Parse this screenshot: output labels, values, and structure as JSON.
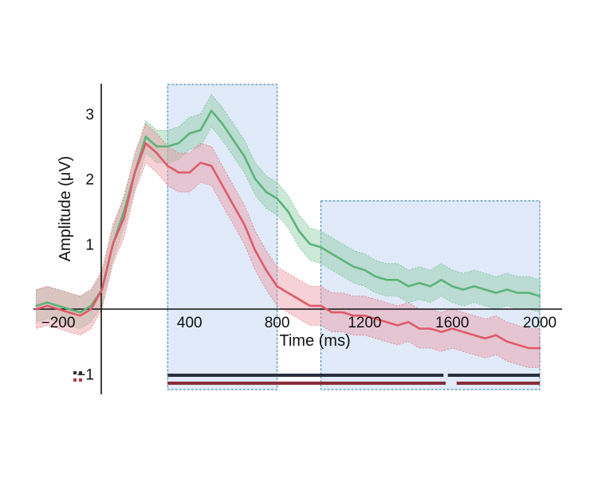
{
  "chart_data": {
    "type": "line",
    "title": "",
    "xlabel": "Time (ms)",
    "ylabel": "Amplitude (μV)",
    "xlim": [
      -300,
      2000
    ],
    "ylim": [
      -1.3,
      3.5
    ],
    "x_ticks": [
      -200,
      400,
      800,
      1200,
      1600,
      2000
    ],
    "y_ticks": [
      -1,
      1,
      2,
      3
    ],
    "grid": false,
    "legend": "none",
    "colors": {
      "green": "#5cb37a",
      "green_band": "#8fcca3",
      "red": "#e05a6a",
      "red_band": "#eb9aa5",
      "window_fill": "#dbe6f7",
      "window_stroke": "#4f8fae",
      "bar_dark": "#2a2f3e",
      "bar_red": "#8a2c3a"
    },
    "windows": [
      {
        "x0": 300,
        "x1": 800
      },
      {
        "x0": 1000,
        "x1": 2000
      }
    ],
    "series": [
      {
        "color": "green",
        "x": [
          -300,
          -250,
          -200,
          -150,
          -100,
          -50,
          0,
          50,
          100,
          150,
          200,
          250,
          300,
          350,
          400,
          450,
          500,
          550,
          600,
          650,
          700,
          750,
          800,
          850,
          900,
          950,
          1000,
          1050,
          1100,
          1150,
          1200,
          1250,
          1300,
          1350,
          1400,
          1450,
          1500,
          1550,
          1600,
          1650,
          1700,
          1750,
          1800,
          1850,
          1900,
          1950,
          2000
        ],
        "y": [
          0.05,
          0.1,
          0.05,
          0.0,
          -0.05,
          0.05,
          0.3,
          1.0,
          1.5,
          2.1,
          2.65,
          2.5,
          2.5,
          2.55,
          2.7,
          2.75,
          3.05,
          2.85,
          2.6,
          2.35,
          2.0,
          1.8,
          1.7,
          1.5,
          1.2,
          1.0,
          0.95,
          0.85,
          0.75,
          0.65,
          0.6,
          0.5,
          0.45,
          0.45,
          0.35,
          0.4,
          0.35,
          0.45,
          0.35,
          0.3,
          0.35,
          0.3,
          0.25,
          0.3,
          0.25,
          0.25,
          0.2
        ],
        "err": 0.25
      },
      {
        "color": "red",
        "x": [
          -300,
          -250,
          -200,
          -150,
          -100,
          -50,
          0,
          50,
          100,
          150,
          200,
          250,
          300,
          350,
          400,
          450,
          500,
          550,
          600,
          650,
          700,
          750,
          800,
          850,
          900,
          950,
          1000,
          1050,
          1100,
          1150,
          1200,
          1250,
          1300,
          1350,
          1400,
          1450,
          1500,
          1550,
          1600,
          1650,
          1700,
          1750,
          1800,
          1850,
          1900,
          1950,
          2000
        ],
        "y": [
          0.0,
          0.05,
          0.0,
          -0.05,
          -0.1,
          0.0,
          0.3,
          1.0,
          1.4,
          2.1,
          2.55,
          2.4,
          2.2,
          2.1,
          2.1,
          2.25,
          2.2,
          1.9,
          1.6,
          1.3,
          0.9,
          0.6,
          0.35,
          0.25,
          0.15,
          0.05,
          0.05,
          -0.05,
          -0.05,
          -0.1,
          -0.1,
          -0.15,
          -0.2,
          -0.25,
          -0.2,
          -0.3,
          -0.3,
          -0.35,
          -0.3,
          -0.35,
          -0.4,
          -0.45,
          -0.4,
          -0.5,
          -0.55,
          -0.6,
          -0.6
        ],
        "err": 0.3
      }
    ],
    "significance_bars": [
      {
        "color": "bar_dark",
        "row": 0,
        "segments": [
          [
            300,
            1560
          ],
          [
            1580,
            2000
          ]
        ]
      },
      {
        "color": "bar_red",
        "row": 1,
        "segments": [
          [
            300,
            1570
          ],
          [
            1620,
            2000
          ]
        ]
      }
    ]
  }
}
